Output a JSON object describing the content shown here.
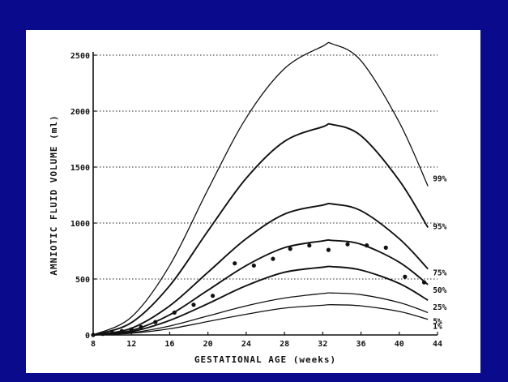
{
  "chart_data": {
    "type": "line",
    "title": "",
    "xlabel": "GESTATIONAL AGE (weeks)",
    "ylabel": "AMNIOTIC FLUID VOLUME (ml)",
    "xlim": [
      8,
      44
    ],
    "ylim": [
      0,
      2500
    ],
    "x_ticks": [
      8,
      12,
      16,
      20,
      24,
      28,
      32,
      36,
      40,
      44
    ],
    "y_ticks": [
      0,
      500,
      1000,
      1500,
      2000,
      2500
    ],
    "grid": "horizontal dotted",
    "series": [
      {
        "name": "99%",
        "x": [
          8,
          12,
          16,
          20,
          24,
          28,
          32,
          33,
          36,
          40,
          43
        ],
        "y": [
          0,
          160,
          620,
          1300,
          1940,
          2380,
          2580,
          2600,
          2450,
          1900,
          1330
        ]
      },
      {
        "name": "95%",
        "x": [
          8,
          12,
          16,
          20,
          24,
          28,
          32,
          33,
          36,
          40,
          43
        ],
        "y": [
          0,
          110,
          440,
          930,
          1400,
          1730,
          1860,
          1880,
          1780,
          1380,
          960
        ]
      },
      {
        "name": "75%",
        "x": [
          8,
          12,
          16,
          20,
          24,
          28,
          32,
          33,
          36,
          40,
          43
        ],
        "y": [
          0,
          60,
          260,
          560,
          860,
          1080,
          1160,
          1170,
          1110,
          860,
          590
        ]
      },
      {
        "name": "50%",
        "x": [
          8,
          12,
          16,
          20,
          24,
          28,
          32,
          33,
          36,
          40,
          43
        ],
        "y": [
          0,
          40,
          180,
          400,
          620,
          780,
          840,
          845,
          810,
          650,
          450
        ]
      },
      {
        "name": "25%",
        "x": [
          8,
          12,
          16,
          20,
          24,
          28,
          32,
          33,
          36,
          40,
          43
        ],
        "y": [
          0,
          30,
          130,
          280,
          440,
          560,
          605,
          610,
          580,
          460,
          310
        ]
      },
      {
        "name": "5%",
        "x": [
          8,
          12,
          16,
          20,
          24,
          28,
          32,
          33,
          36,
          40,
          43
        ],
        "y": [
          0,
          20,
          80,
          170,
          260,
          330,
          370,
          375,
          360,
          290,
          200
        ]
      },
      {
        "name": "1%",
        "x": [
          8,
          12,
          16,
          20,
          24,
          28,
          32,
          33,
          36,
          40,
          43
        ],
        "y": [
          0,
          15,
          55,
          120,
          185,
          240,
          265,
          270,
          260,
          210,
          140
        ]
      }
    ],
    "points": {
      "x": [
        8,
        9,
        10,
        11,
        12,
        13,
        14.5,
        16.5,
        18.5,
        20.5,
        22.8,
        24.8,
        26.8,
        28.6,
        30.6,
        32.6,
        34.6,
        36.6,
        38.6,
        40.6,
        42.6
      ],
      "y": [
        0,
        10,
        20,
        35,
        50,
        70,
        115,
        200,
        270,
        350,
        640,
        620,
        680,
        770,
        800,
        760,
        810,
        800,
        780,
        520,
        470
      ]
    }
  }
}
